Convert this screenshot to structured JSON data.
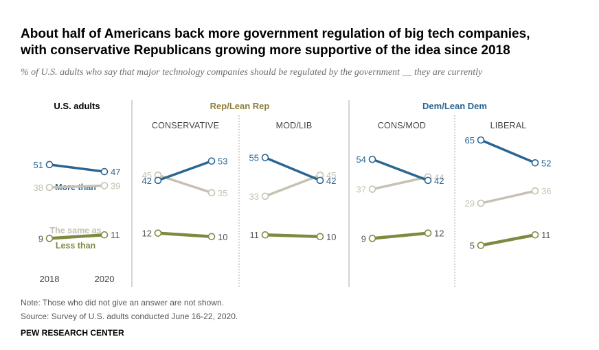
{
  "title_lines": [
    "About half of Americans back more government regulation of big tech companies,",
    "with conservative Republicans growing more supportive of the idea since 2018"
  ],
  "subtitle": "% of U.S. adults who say that major technology companies should be regulated by the government __ they are currently",
  "note": "Note: Those who did not give an answer are not shown.",
  "source": "Source: Survey of U.S. adults conducted June 16-22, 2020.",
  "org": "PEW RESEARCH CENTER",
  "colors": {
    "more": "#2b6692",
    "same": "#c6c1b1",
    "less": "#7f8a41",
    "rep": "#8c7f3a",
    "dem": "#2b6692"
  },
  "chart_data": {
    "type": "line",
    "title": "About half of Americans back more government regulation of big tech companies, with conservative Republicans growing more supportive of the idea since 2018",
    "x": [
      "2018",
      "2020"
    ],
    "ylim": [
      0,
      70
    ],
    "legend": [
      "More than",
      "The same as",
      "Less than"
    ],
    "group_headers": {
      "us": "U.S. adults",
      "rep": "Rep/Lean Rep",
      "dem": "Dem/Lean Dem"
    },
    "panels": [
      {
        "name": "U.S. adults",
        "sublabel": "",
        "more": [
          51,
          47
        ],
        "same": [
          38,
          39
        ],
        "less": [
          9,
          11
        ]
      },
      {
        "name": "Conservative Rep",
        "sublabel": "CONSERVATIVE",
        "more": [
          42,
          53
        ],
        "same": [
          45,
          35
        ],
        "less": [
          12,
          10
        ]
      },
      {
        "name": "Mod/Lib Rep",
        "sublabel": "MOD/LIB",
        "more": [
          55,
          42
        ],
        "same": [
          33,
          45
        ],
        "less": [
          11,
          10
        ]
      },
      {
        "name": "Cons/Mod Dem",
        "sublabel": "CONS/MOD",
        "more": [
          54,
          42
        ],
        "same": [
          37,
          44
        ],
        "less": [
          9,
          12
        ]
      },
      {
        "name": "Liberal Dem",
        "sublabel": "LIBERAL",
        "more": [
          65,
          52
        ],
        "same": [
          29,
          36
        ],
        "less": [
          5,
          11
        ]
      }
    ]
  }
}
